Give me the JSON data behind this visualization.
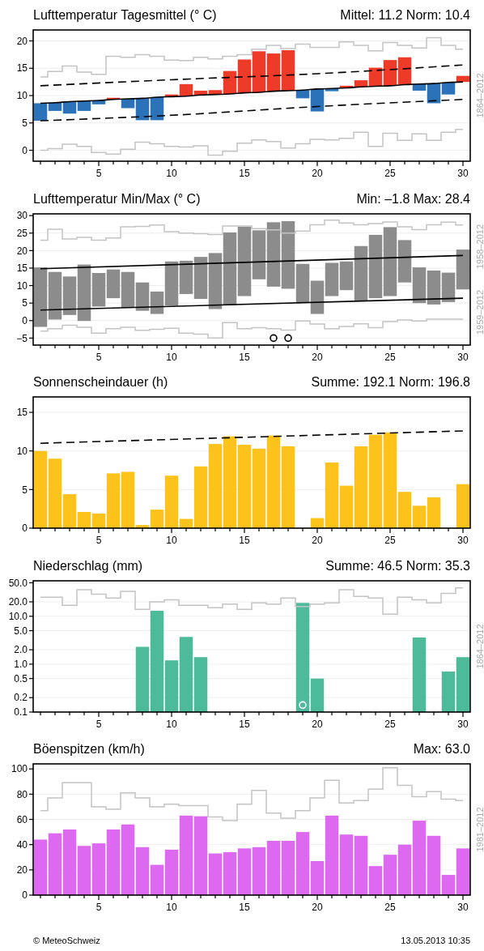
{
  "chart_data": [
    {
      "type": "bar",
      "title": "Lufttemperatur Tagesmittel (° C)",
      "subtitle": "Mittel: 11.2    Norm: 10.4",
      "x": [
        1,
        2,
        3,
        4,
        5,
        6,
        7,
        8,
        9,
        10,
        11,
        12,
        13,
        14,
        15,
        16,
        17,
        18,
        19,
        20,
        21,
        22,
        23,
        24,
        25,
        26,
        27,
        28,
        29,
        30
      ],
      "xlim": [
        0.5,
        30.5
      ],
      "xticks": [
        {
          "value": 1,
          "label": null
        },
        {
          "value": 2,
          "label": null
        },
        {
          "value": 3,
          "label": null
        },
        {
          "value": 4,
          "label": null
        },
        5,
        {
          "value": 6,
          "label": null
        },
        {
          "value": 7,
          "label": null
        },
        {
          "value": 8,
          "label": null
        },
        {
          "value": 9,
          "label": null
        },
        10,
        {
          "value": 11,
          "label": null
        },
        {
          "value": 12,
          "label": null
        },
        {
          "value": 13,
          "label": null
        },
        {
          "value": 14,
          "label": null
        },
        15,
        {
          "value": 16,
          "label": null
        },
        {
          "value": 17,
          "label": null
        },
        {
          "value": 18,
          "label": null
        },
        {
          "value": 19,
          "label": null
        },
        20,
        {
          "value": 21,
          "label": null
        },
        {
          "value": 22,
          "label": null
        },
        {
          "value": 23,
          "label": null
        },
        {
          "value": 24,
          "label": null
        },
        25,
        {
          "value": 26,
          "label": null
        },
        {
          "value": 27,
          "label": null
        },
        {
          "value": 28,
          "label": null
        },
        {
          "value": 29,
          "label": null
        },
        30
      ],
      "ylim": [
        -2,
        22
      ],
      "yticks": [
        0,
        5,
        10,
        15,
        20
      ],
      "grid": "y",
      "series": [
        {
          "type": "step",
          "color": "#c4c4c4",
          "values": [
            13.4,
            14.4,
            15.4,
            14.3,
            13.9,
            17.2,
            17.0,
            17.5,
            17.2,
            16.5,
            16.4,
            17.0,
            16.7,
            17.2,
            17.5,
            18.5,
            19.2,
            18.6,
            19.4,
            18.8,
            18.8,
            19.8,
            19.2,
            18.2,
            19.7,
            19.2,
            18.7,
            20.6,
            19.2,
            18.5
          ]
        },
        {
          "type": "step",
          "color": "#c4c4c4",
          "values": [
            0.0,
            0.3,
            1.1,
            0.7,
            -0.4,
            -0.7,
            0.2,
            1.5,
            1.2,
            0.7,
            0.6,
            0.8,
            -0.9,
            -0.2,
            1.3,
            1.9,
            1.6,
            0.4,
            1.2,
            2.0,
            1.9,
            2.2,
            3.3,
            0.7,
            3.1,
            1.8,
            3.0,
            1.8,
            3.3,
            3.8
          ]
        },
        {
          "base": [
            8.6,
            8.7,
            8.9,
            9.0,
            9.1,
            9.3,
            9.4,
            9.5,
            9.7,
            9.8,
            9.9,
            10.1,
            10.2,
            10.3,
            10.5,
            10.6,
            10.8,
            10.9,
            11.0,
            11.2,
            11.3,
            11.4,
            11.6,
            11.7,
            11.8,
            12.0,
            12.1,
            12.2,
            12.4,
            12.5
          ],
          "values": [
            -3.2,
            -1.5,
            -2.2,
            -1.8,
            -0.7,
            0.3,
            -1.7,
            -4.0,
            -4.2,
            0.4,
            2.2,
            0.8,
            0.8,
            4.2,
            6.1,
            7.5,
            6.9,
            7.4,
            -1.5,
            -4.1,
            -0.5,
            0.4,
            1.2,
            3.4,
            4.7,
            5.0,
            -1.2,
            -3.6,
            -2.2,
            1.1
          ],
          "colors": [
            "#2b72b9",
            "#2b72b9",
            "#2b72b9",
            "#2b72b9",
            "#2b72b9",
            "#ee3b29",
            "#2b72b9",
            "#2b72b9",
            "#2b72b9",
            "#ee3b29",
            "#ee3b29",
            "#ee3b29",
            "#ee3b29",
            "#ee3b29",
            "#ee3b29",
            "#ee3b29",
            "#ee3b29",
            "#ee3b29",
            "#2b72b9",
            "#2b72b9",
            "#2b72b9",
            "#ee3b29",
            "#ee3b29",
            "#ee3b29",
            "#ee3b29",
            "#ee3b29",
            "#2b72b9",
            "#2b72b9",
            "#2b72b9",
            "#ee3b29"
          ]
        },
        {
          "type": "line",
          "color": "#000000",
          "line_style": "solid",
          "values": [
            8.6,
            8.7,
            8.9,
            9.0,
            9.1,
            9.3,
            9.4,
            9.5,
            9.7,
            9.8,
            9.9,
            10.1,
            10.2,
            10.3,
            10.5,
            10.6,
            10.8,
            10.9,
            11.0,
            11.2,
            11.3,
            11.4,
            11.6,
            11.7,
            11.8,
            12.0,
            12.1,
            12.2,
            12.4,
            12.5
          ]
        },
        {
          "type": "line",
          "color": "#000000",
          "line_style": "dashed",
          "x": [
            1,
            10,
            20,
            30
          ],
          "values": [
            11.8,
            12.9,
            14.0,
            15.6
          ]
        },
        {
          "type": "line",
          "color": "#000000",
          "line_style": "dashed",
          "x": [
            1,
            10,
            20,
            30
          ],
          "values": [
            5.4,
            6.4,
            8.0,
            9.3
          ]
        }
      ],
      "annotations": [
        "1864–2012"
      ]
    },
    {
      "type": "bar",
      "title": "Lufttemperatur Min/Max (° C)",
      "subtitle": "Min: –1.8    Max: 28.4",
      "x": [
        1,
        2,
        3,
        4,
        5,
        6,
        7,
        8,
        9,
        10,
        11,
        12,
        13,
        14,
        15,
        16,
        17,
        18,
        19,
        20,
        21,
        22,
        23,
        24,
        25,
        26,
        27,
        28,
        29,
        30
      ],
      "xlim": [
        0.5,
        30.5
      ],
      "xticks": [
        {
          "value": 1,
          "label": null
        },
        {
          "value": 2,
          "label": null
        },
        {
          "value": 3,
          "label": null
        },
        {
          "value": 4,
          "label": null
        },
        5,
        {
          "value": 6,
          "label": null
        },
        {
          "value": 7,
          "label": null
        },
        {
          "value": 8,
          "label": null
        },
        {
          "value": 9,
          "label": null
        },
        10,
        {
          "value": 11,
          "label": null
        },
        {
          "value": 12,
          "label": null
        },
        {
          "value": 13,
          "label": null
        },
        {
          "value": 14,
          "label": null
        },
        15,
        {
          "value": 16,
          "label": null
        },
        {
          "value": 17,
          "label": null
        },
        {
          "value": 18,
          "label": null
        },
        {
          "value": 19,
          "label": null
        },
        20,
        {
          "value": 21,
          "label": null
        },
        {
          "value": 22,
          "label": null
        },
        {
          "value": 23,
          "label": null
        },
        {
          "value": 24,
          "label": null
        },
        25,
        {
          "value": 26,
          "label": null
        },
        {
          "value": 27,
          "label": null
        },
        {
          "value": 28,
          "label": null
        },
        {
          "value": 29,
          "label": null
        },
        30
      ],
      "ylim": [
        -7,
        30.5
      ],
      "yticks": [
        {
          "value": -5,
          "label": "−5"
        },
        0,
        5,
        10,
        15,
        20,
        25,
        30
      ],
      "grid": "y",
      "series": [
        {
          "color": "#8c8c8c",
          "base": [
            -1.8,
            0.3,
            1.6,
            -0.1,
            4.0,
            6.4,
            3.7,
            2.8,
            1.9,
            4.3,
            7.6,
            6.2,
            3.3,
            4.4,
            7.0,
            11.8,
            9.7,
            9.1,
            5.0,
            1.9,
            7.0,
            8.7,
            5.5,
            6.4,
            7.0,
            10.9,
            5.0,
            4.6,
            5.3,
            8.9
          ],
          "values": [
            17.0,
            13.6,
            11.0,
            16.1,
            9.6,
            8.2,
            10.2,
            8.1,
            6.4,
            12.6,
            9.5,
            12.0,
            16.0,
            20.8,
            19.8,
            14.0,
            18.4,
            19.3,
            11.2,
            9.5,
            9.5,
            8.2,
            15.8,
            18.1,
            19.7,
            12.1,
            10.2,
            9.7,
            8.4,
            11.4
          ]
        },
        {
          "type": "step",
          "color": "#c4c4c4",
          "values": [
            23.0,
            26.1,
            23.3,
            23.8,
            23.0,
            23.6,
            26.8,
            26.9,
            27.3,
            25.4,
            25.0,
            24.8,
            24.6,
            27.0,
            27.0,
            26.3,
            25.9,
            25.0,
            25.6,
            27.4,
            28.7,
            27.9,
            27.4,
            27.7,
            28.2,
            26.8,
            26.0,
            27.4,
            28.1,
            27.3
          ]
        },
        {
          "type": "step",
          "color": "#c4c4c4",
          "values": [
            -3.0,
            -2.3,
            -1.3,
            -1.9,
            -3.6,
            -2.3,
            -1.9,
            -2.8,
            -2.5,
            -2.2,
            -3.6,
            -3.9,
            -5.0,
            -0.6,
            -2.3,
            -2.0,
            -2.3,
            -2.7,
            -0.1,
            -1.0,
            -2.3,
            -1.7,
            -0.9,
            -2.0,
            -0.3,
            0.2,
            -0.1,
            0.4,
            0.4,
            0.4
          ]
        },
        {
          "type": "line",
          "color": "#000000",
          "line_style": "solid",
          "x": [
            1,
            30
          ],
          "values": [
            14.8,
            18.6
          ]
        },
        {
          "type": "line",
          "color": "#000000",
          "line_style": "solid",
          "x": [
            1,
            30
          ],
          "values": [
            3.0,
            6.4
          ]
        },
        {
          "type": "scatter",
          "color": "#000000",
          "marker": "circle",
          "x": [
            17,
            18
          ],
          "values": [
            -5,
            -5
          ]
        }
      ],
      "annotations": [
        "1958–2012",
        "1959–2012"
      ]
    },
    {
      "type": "bar",
      "title": "Sonnenscheindauer (h)",
      "subtitle": "Summe: 192.1    Norm: 196.8",
      "x": [
        1,
        2,
        3,
        4,
        5,
        6,
        7,
        8,
        9,
        10,
        11,
        12,
        13,
        14,
        15,
        16,
        17,
        18,
        19,
        20,
        21,
        22,
        23,
        24,
        25,
        26,
        27,
        28,
        29,
        30
      ],
      "xlim": [
        0.5,
        30.5
      ],
      "xticks": [
        {
          "value": 1,
          "label": null
        },
        {
          "value": 2,
          "label": null
        },
        {
          "value": 3,
          "label": null
        },
        {
          "value": 4,
          "label": null
        },
        5,
        {
          "value": 6,
          "label": null
        },
        {
          "value": 7,
          "label": null
        },
        {
          "value": 8,
          "label": null
        },
        {
          "value": 9,
          "label": null
        },
        10,
        {
          "value": 11,
          "label": null
        },
        {
          "value": 12,
          "label": null
        },
        {
          "value": 13,
          "label": null
        },
        {
          "value": 14,
          "label": null
        },
        15,
        {
          "value": 16,
          "label": null
        },
        {
          "value": 17,
          "label": null
        },
        {
          "value": 18,
          "label": null
        },
        {
          "value": 19,
          "label": null
        },
        20,
        {
          "value": 21,
          "label": null
        },
        {
          "value": 22,
          "label": null
        },
        {
          "value": 23,
          "label": null
        },
        {
          "value": 24,
          "label": null
        },
        25,
        {
          "value": 26,
          "label": null
        },
        {
          "value": 27,
          "label": null
        },
        {
          "value": 28,
          "label": null
        },
        {
          "value": 29,
          "label": null
        },
        30
      ],
      "ylim": [
        0,
        17
      ],
      "yticks": [
        0,
        5,
        10,
        15
      ],
      "grid": "y",
      "series": [
        {
          "color": "#fdc21c",
          "values": [
            10.0,
            9.0,
            4.4,
            2.1,
            1.9,
            7.1,
            7.3,
            0.4,
            2.4,
            6.8,
            1.2,
            8.0,
            10.9,
            11.9,
            10.8,
            10.3,
            12.0,
            10.6,
            0,
            1.3,
            8.5,
            5.5,
            10.6,
            12.1,
            12.4,
            4.7,
            2.9,
            4.0,
            0,
            5.7
          ]
        },
        {
          "type": "line",
          "color": "#000000",
          "line_style": "dashed",
          "x": [
            1,
            30
          ],
          "values": [
            11.0,
            12.6
          ]
        }
      ]
    },
    {
      "type": "bar",
      "title": "Niederschlag (mm)",
      "subtitle": "Summe: 46.5    Norm: 35.3",
      "x": [
        1,
        2,
        3,
        4,
        5,
        6,
        7,
        8,
        9,
        10,
        11,
        12,
        13,
        14,
        15,
        16,
        17,
        18,
        19,
        20,
        21,
        22,
        23,
        24,
        25,
        26,
        27,
        28,
        29,
        30
      ],
      "xlim": [
        0.5,
        30.5
      ],
      "xticks": [
        {
          "value": 1,
          "label": null
        },
        {
          "value": 2,
          "label": null
        },
        {
          "value": 3,
          "label": null
        },
        {
          "value": 4,
          "label": null
        },
        5,
        {
          "value": 6,
          "label": null
        },
        {
          "value": 7,
          "label": null
        },
        {
          "value": 8,
          "label": null
        },
        {
          "value": 9,
          "label": null
        },
        10,
        {
          "value": 11,
          "label": null
        },
        {
          "value": 12,
          "label": null
        },
        {
          "value": 13,
          "label": null
        },
        {
          "value": 14,
          "label": null
        },
        15,
        {
          "value": 16,
          "label": null
        },
        {
          "value": 17,
          "label": null
        },
        {
          "value": 18,
          "label": null
        },
        {
          "value": 19,
          "label": null
        },
        20,
        {
          "value": 21,
          "label": null
        },
        {
          "value": 22,
          "label": null
        },
        {
          "value": 23,
          "label": null
        },
        {
          "value": 24,
          "label": null
        },
        25,
        {
          "value": 26,
          "label": null
        },
        {
          "value": 27,
          "label": null
        },
        {
          "value": 28,
          "label": null
        },
        {
          "value": 29,
          "label": null
        },
        30
      ],
      "ylim": [
        0.1,
        55
      ],
      "log": true,
      "yticks": [
        {
          "value": 0.1,
          "label": "0.1"
        },
        {
          "value": 0.2,
          "label": "0.2"
        },
        {
          "value": 0.5,
          "label": "0.5"
        },
        {
          "value": 1,
          "label": "1.0"
        },
        {
          "value": 2,
          "label": "2.0"
        },
        {
          "value": 5,
          "label": "5.0"
        },
        {
          "value": 10,
          "label": "10.0"
        },
        {
          "value": 20,
          "label": "20.0"
        },
        {
          "value": 50,
          "label": "50.0"
        }
      ],
      "grid": "y",
      "series": [
        {
          "color": "#4dba99",
          "values": [
            null,
            null,
            null,
            null,
            null,
            null,
            null,
            2.3,
            13.0,
            1.2,
            3.7,
            1.4,
            null,
            null,
            null,
            null,
            null,
            null,
            19.0,
            0.5,
            null,
            null,
            null,
            null,
            null,
            null,
            3.6,
            null,
            0.7,
            1.4
          ]
        },
        {
          "type": "step",
          "color": "#c4c4c4",
          "values": [
            25,
            25,
            17,
            36,
            29,
            24,
            33,
            14,
            20,
            22,
            17,
            17,
            15,
            18,
            14,
            19,
            18,
            24,
            16,
            18,
            19,
            36,
            26,
            24,
            11,
            25,
            22,
            19,
            30,
            39
          ]
        },
        {
          "type": "scatter",
          "color": "#ffffff",
          "marker": "circle",
          "x": [
            19
          ],
          "values": [
            0.14
          ]
        }
      ],
      "annotations": [
        "1864–2012"
      ]
    },
    {
      "type": "bar",
      "title": "Böenspitzen (km/h)",
      "subtitle": "Max: 63.0",
      "x": [
        1,
        2,
        3,
        4,
        5,
        6,
        7,
        8,
        9,
        10,
        11,
        12,
        13,
        14,
        15,
        16,
        17,
        18,
        19,
        20,
        21,
        22,
        23,
        24,
        25,
        26,
        27,
        28,
        29,
        30
      ],
      "xlim": [
        0.5,
        30.5
      ],
      "xticks": [
        {
          "value": 1,
          "label": null
        },
        {
          "value": 2,
          "label": null
        },
        {
          "value": 3,
          "label": null
        },
        {
          "value": 4,
          "label": null
        },
        5,
        {
          "value": 6,
          "label": null
        },
        {
          "value": 7,
          "label": null
        },
        {
          "value": 8,
          "label": null
        },
        {
          "value": 9,
          "label": null
        },
        10,
        {
          "value": 11,
          "label": null
        },
        {
          "value": 12,
          "label": null
        },
        {
          "value": 13,
          "label": null
        },
        {
          "value": 14,
          "label": null
        },
        15,
        {
          "value": 16,
          "label": null
        },
        {
          "value": 17,
          "label": null
        },
        {
          "value": 18,
          "label": null
        },
        {
          "value": 19,
          "label": null
        },
        20,
        {
          "value": 21,
          "label": null
        },
        {
          "value": 22,
          "label": null
        },
        {
          "value": 23,
          "label": null
        },
        {
          "value": 24,
          "label": null
        },
        25,
        {
          "value": 26,
          "label": null
        },
        {
          "value": 27,
          "label": null
        },
        {
          "value": 28,
          "label": null
        },
        {
          "value": 29,
          "label": null
        },
        30
      ],
      "ylim": [
        0,
        104
      ],
      "yticks": [
        0,
        20,
        40,
        60,
        80,
        100
      ],
      "grid": "y",
      "series": [
        {
          "type": "step",
          "color": "#c4c4c4",
          "values": [
            67,
            77,
            89,
            89,
            70,
            68,
            81,
            77,
            70,
            72,
            71,
            71,
            62,
            59,
            72,
            83,
            65,
            61,
            67,
            77,
            91,
            73,
            75,
            84,
            101,
            87,
            78,
            82,
            76,
            75
          ]
        },
        {
          "color": "#dd69f0",
          "values": [
            44,
            49,
            52,
            39,
            41,
            52,
            56,
            38,
            24,
            36,
            63.0,
            62.5,
            33,
            34,
            37,
            38,
            43,
            43,
            50,
            27,
            63.0,
            48,
            47,
            23,
            32,
            40,
            59,
            47,
            16,
            37
          ]
        }
      ],
      "annotations": [
        "1981–2012",
        "© MeteoSchweiz",
        "13.05.2013 10:35"
      ]
    }
  ]
}
